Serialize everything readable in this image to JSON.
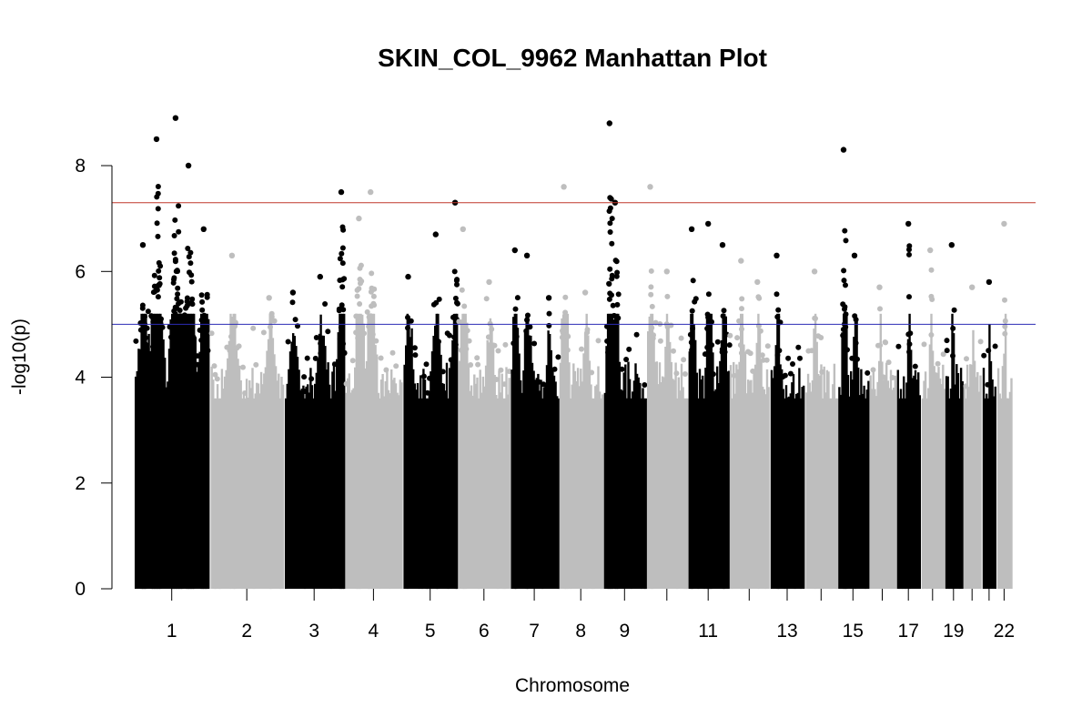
{
  "chart_data": {
    "type": "scatter",
    "title": "SKIN_COL_9962 Manhattan Plot",
    "xlabel": "Chromosome",
    "ylabel": "-log10(p)",
    "ylim": [
      0,
      9
    ],
    "y_ticks": [
      0,
      2,
      4,
      6,
      8
    ],
    "legend": "none",
    "grid": false,
    "colors": [
      "#000000",
      "#bebebe"
    ],
    "threshold_lines": [
      {
        "name": "genome-wide",
        "value": 7.3,
        "color": "#c0392b"
      },
      {
        "name": "suggestive",
        "value": 5.0,
        "color": "#2b2bb5"
      }
    ],
    "chromosomes": [
      {
        "chr": "1",
        "label": "1",
        "length": 249,
        "peaks": [
          [
            0.12,
            6.5
          ],
          [
            0.3,
            8.5
          ],
          [
            0.55,
            8.9
          ],
          [
            0.72,
            8.0
          ],
          [
            0.92,
            6.8
          ]
        ]
      },
      {
        "chr": "2",
        "label": "2",
        "length": 243,
        "peaks": [
          [
            0.3,
            6.3
          ],
          [
            0.8,
            5.5
          ]
        ]
      },
      {
        "chr": "3",
        "label": "3",
        "length": 198,
        "peaks": [
          [
            0.15,
            5.6
          ],
          [
            0.6,
            5.9
          ],
          [
            0.95,
            7.5
          ]
        ]
      },
      {
        "chr": "4",
        "label": "4",
        "length": 191,
        "peaks": [
          [
            0.25,
            7.0
          ],
          [
            0.45,
            7.5
          ]
        ]
      },
      {
        "chr": "5",
        "label": "5",
        "length": 181,
        "peaks": [
          [
            0.1,
            5.9
          ],
          [
            0.6,
            6.7
          ],
          [
            0.95,
            7.3
          ]
        ]
      },
      {
        "chr": "6",
        "label": "6",
        "length": 171,
        "peaks": [
          [
            0.1,
            6.8
          ],
          [
            0.6,
            5.8
          ]
        ]
      },
      {
        "chr": "7",
        "label": "7",
        "length": 159,
        "peaks": [
          [
            0.1,
            6.4
          ],
          [
            0.35,
            6.3
          ],
          [
            0.8,
            5.5
          ]
        ]
      },
      {
        "chr": "8",
        "label": "8",
        "length": 146,
        "peaks": [
          [
            0.12,
            7.6
          ],
          [
            0.6,
            5.6
          ]
        ]
      },
      {
        "chr": "9",
        "label": "9",
        "length": 141,
        "peaks": [
          [
            0.15,
            8.8
          ],
          [
            0.28,
            7.3
          ]
        ]
      },
      {
        "chr": "10",
        "label": "",
        "length": 136,
        "peaks": [
          [
            0.1,
            7.6
          ],
          [
            0.5,
            6.0
          ]
        ]
      },
      {
        "chr": "11",
        "label": "11",
        "length": 135,
        "peaks": [
          [
            0.1,
            6.8
          ],
          [
            0.5,
            6.9
          ],
          [
            0.85,
            6.5
          ]
        ]
      },
      {
        "chr": "12",
        "label": "",
        "length": 134,
        "peaks": [
          [
            0.3,
            6.2
          ],
          [
            0.7,
            5.8
          ]
        ]
      },
      {
        "chr": "13",
        "label": "13",
        "length": 115,
        "peaks": [
          [
            0.2,
            6.3
          ]
        ]
      },
      {
        "chr": "14",
        "label": "",
        "length": 107,
        "peaks": [
          [
            0.3,
            6.0
          ]
        ]
      },
      {
        "chr": "15",
        "label": "15",
        "length": 102,
        "peaks": [
          [
            0.2,
            8.3
          ],
          [
            0.55,
            6.3
          ]
        ]
      },
      {
        "chr": "16",
        "label": "",
        "length": 90,
        "peaks": [
          [
            0.4,
            5.7
          ]
        ]
      },
      {
        "chr": "17",
        "label": "17",
        "length": 81,
        "peaks": [
          [
            0.5,
            6.9
          ]
        ]
      },
      {
        "chr": "18",
        "label": "",
        "length": 78,
        "peaks": [
          [
            0.4,
            6.4
          ]
        ]
      },
      {
        "chr": "19",
        "label": "19",
        "length": 59,
        "peaks": [
          [
            0.4,
            6.5
          ]
        ]
      },
      {
        "chr": "20",
        "label": "",
        "length": 63,
        "peaks": [
          [
            0.5,
            5.7
          ]
        ]
      },
      {
        "chr": "21",
        "label": "",
        "length": 48,
        "peaks": [
          [
            0.5,
            5.8
          ]
        ]
      },
      {
        "chr": "22",
        "label": "22",
        "length": 51,
        "peaks": [
          [
            0.5,
            6.9
          ]
        ]
      }
    ]
  }
}
